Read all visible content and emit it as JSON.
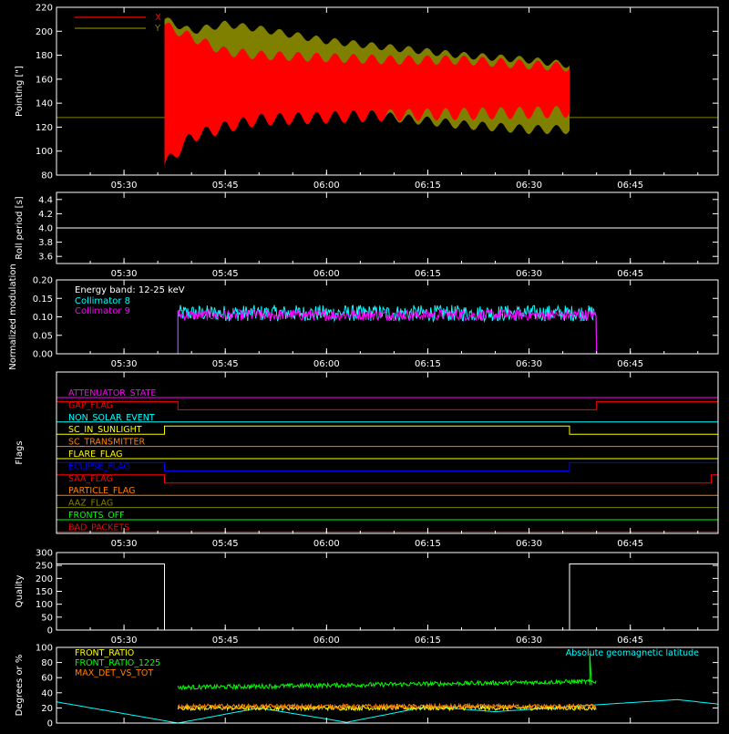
{
  "chart_data": [
    {
      "type": "line",
      "ylabel": "Pointing [\"]",
      "ylim": [
        80,
        220
      ],
      "yticks": [
        "80",
        "100",
        "120",
        "140",
        "160",
        "180",
        "200",
        "220"
      ],
      "xticks": [
        "05:30",
        "05:45",
        "06:00",
        "06:15",
        "06:30",
        "06:45"
      ],
      "legend": {
        "placement": "top-left",
        "entries": [
          "X",
          "Y"
        ]
      },
      "series": [
        {
          "name": "X",
          "color": "#ff0000",
          "x": [
            "05:36",
            "05:40",
            "05:45",
            "05:50",
            "06:00",
            "06:10",
            "06:20",
            "06:30",
            "06:36"
          ],
          "max": [
            205,
            195,
            183,
            180,
            178,
            176,
            176,
            172,
            170
          ],
          "min": [
            88,
            112,
            120,
            126,
            128,
            130,
            131,
            132,
            133
          ]
        },
        {
          "name": "Y",
          "color": "#808000",
          "x": [
            "05:36",
            "05:40",
            "05:45",
            "05:50",
            "06:00",
            "06:10",
            "06:20",
            "06:30",
            "06:36"
          ],
          "max": [
            210,
            200,
            206,
            202,
            192,
            186,
            180,
            176,
            172
          ],
          "min": [
            140,
            150,
            150,
            145,
            135,
            128,
            122,
            118,
            118
          ]
        }
      ],
      "baseline": {
        "value": 128,
        "color": "#808000"
      }
    },
    {
      "type": "line",
      "ylabel": "Roll period [s]",
      "ylim": [
        3.5,
        4.5
      ],
      "yticks": [
        "3.6",
        "3.8",
        "4.0",
        "4.2",
        "4.4"
      ],
      "xticks": [
        "05:30",
        "05:45",
        "06:00",
        "06:15",
        "06:30",
        "06:45"
      ],
      "series": [
        {
          "name": "",
          "color": "#ffffff",
          "x": [
            "05:20",
            "06:58"
          ],
          "values": [
            4.0,
            4.0
          ]
        }
      ]
    },
    {
      "type": "line",
      "ylabel": "Normalized modulation",
      "ylim": [
        0,
        0.2
      ],
      "yticks": [
        "0.00",
        "0.05",
        "0.10",
        "0.15",
        "0.20"
      ],
      "xticks": [
        "05:30",
        "05:45",
        "06:00",
        "06:15",
        "06:30",
        "06:45"
      ],
      "annotation": "Energy band: 12-25 keV",
      "series": [
        {
          "name": "Collimator 8",
          "color": "#00ffff",
          "active": [
            "05:38",
            "06:40"
          ],
          "mean": 0.11,
          "spread": 0.022
        },
        {
          "name": "Collimator 9",
          "color": "#ff00ff",
          "active": [
            "05:38",
            "06:40"
          ],
          "mean": 0.105,
          "spread": 0.015
        }
      ]
    },
    {
      "type": "line",
      "ylabel": "Flags",
      "xticks": [
        "05:30",
        "05:45",
        "06:00",
        "06:15",
        "06:30",
        "06:45"
      ],
      "flags": [
        {
          "name": "ATTENUATOR_STATE",
          "color": "#ff00ff",
          "steps": []
        },
        {
          "name": "GAP_FLAG",
          "color": "#ff0000",
          "steps": [
            "05:38",
            "06:40"
          ],
          "start_high": true
        },
        {
          "name": "NON_SOLAR_EVENT",
          "color": "#00ffff",
          "steps": []
        },
        {
          "name": "SC_IN_SUNLIGHT",
          "color": "#ffff00",
          "steps": [
            "05:36",
            "06:36"
          ],
          "start_high": false
        },
        {
          "name": "SC_TRANSMITTER",
          "color": "#ff7f00",
          "steps": []
        },
        {
          "name": "FLARE_FLAG",
          "color": "#ffff00",
          "steps": []
        },
        {
          "name": "ECLIPSE_FLAG",
          "color": "#0000ff",
          "steps": [
            "05:36",
            "06:36"
          ],
          "start_high": true
        },
        {
          "name": "SAA_FLAG",
          "color": "#ff0000",
          "steps": [
            "05:36",
            "06:57"
          ],
          "start_high": true
        },
        {
          "name": "PARTICLE_FLAG",
          "color": "#ff7f00",
          "steps": []
        },
        {
          "name": "AAZ_FLAG",
          "color": "#808000",
          "steps": []
        },
        {
          "name": "FRONTS_OFF",
          "color": "#00ff00",
          "steps": []
        },
        {
          "name": "BAD_PACKETS",
          "color": "#ff0000",
          "steps": []
        }
      ]
    },
    {
      "type": "line",
      "ylabel": "Quality",
      "ylim": [
        0,
        300
      ],
      "yticks": [
        "0",
        "50",
        "100",
        "150",
        "200",
        "250",
        "300"
      ],
      "xticks": [
        "05:30",
        "05:45",
        "06:00",
        "06:15",
        "06:30",
        "06:45"
      ],
      "series": [
        {
          "name": "",
          "color": "#ffffff",
          "x": [
            "05:20",
            "05:36",
            "05:36",
            "06:36",
            "06:36",
            "06:58"
          ],
          "values": [
            256,
            256,
            0,
            0,
            256,
            256
          ]
        }
      ]
    },
    {
      "type": "line",
      "ylabel": "Degrees or %",
      "ylim": [
        0,
        100
      ],
      "yticks": [
        "0",
        "20",
        "40",
        "60",
        "80",
        "100"
      ],
      "xticks": [
        "05:30",
        "05:45",
        "06:00",
        "06:15",
        "06:30",
        "06:45"
      ],
      "series": [
        {
          "name": "FRONT_RATIO",
          "color": "#ffff00",
          "active": [
            "05:38",
            "06:40"
          ],
          "mean": 20,
          "spread": 3
        },
        {
          "name": "FRONT_RATIO_1225",
          "color": "#00ff00",
          "active": [
            "05:38",
            "06:40"
          ],
          "start": 47,
          "end": 55,
          "spread": 3
        },
        {
          "name": "MAX_DET_VS_TOT",
          "color": "#ff7f00",
          "active": [
            "05:38",
            "06:40"
          ],
          "mean": 22,
          "spread": 3
        },
        {
          "name": "Absolute geomagnetic latitude",
          "color": "#00ffff",
          "x": [
            "05:20",
            "05:38",
            "05:50",
            "06:03",
            "06:15",
            "06:25",
            "06:38",
            "06:52",
            "06:58"
          ],
          "values": [
            28,
            0,
            20,
            1,
            22,
            15,
            23,
            31,
            25
          ]
        }
      ]
    }
  ]
}
